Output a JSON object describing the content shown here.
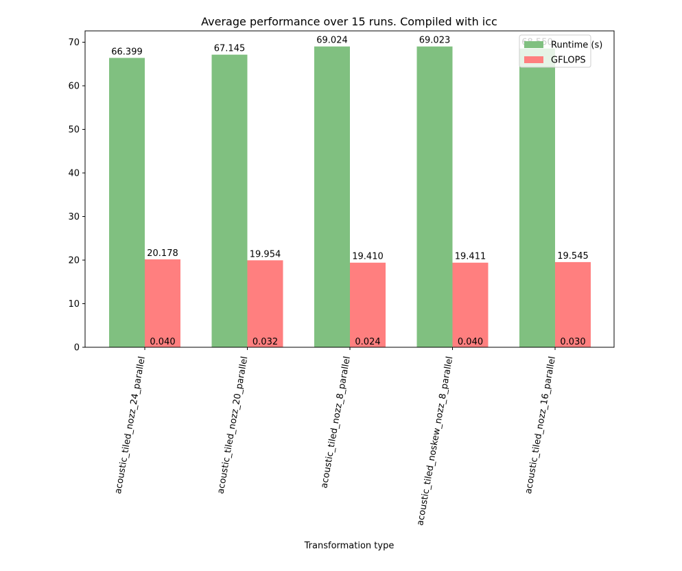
{
  "chart_data": {
    "type": "bar",
    "title": "Average performance over 15 runs. Compiled with icc",
    "xlabel": "Transformation type",
    "ylabel": "",
    "ylim": [
      0,
      72.6
    ],
    "yticks": [
      0,
      10,
      20,
      30,
      40,
      50,
      60,
      70
    ],
    "grid": false,
    "legend_position": "top-right",
    "categories": [
      "acoustic_tiled_nozz_24_parallel",
      "acoustic_tiled_nozz_20_parallel",
      "acoustic_tiled_nozz_8_parallel",
      "acoustic_tiled_noskew_nozz_8_parallel",
      "acoustic_tiled_nozz_16_parallel"
    ],
    "series": [
      {
        "name": "Runtime (s)",
        "color": "#80c080",
        "values": [
          66.399,
          67.145,
          69.024,
          69.023,
          68.55
        ],
        "labels": [
          "66.399",
          "67.145",
          "69.024",
          "69.023",
          "68.550"
        ]
      },
      {
        "name": "GFLOPS",
        "color": "#ff7f7f",
        "values": [
          20.178,
          19.954,
          19.41,
          19.411,
          19.545
        ],
        "labels": [
          "20.178",
          "19.954",
          "19.410",
          "19.411",
          "19.545"
        ]
      }
    ],
    "annotations": [
      "0.040",
      "0.032",
      "0.024",
      "0.040",
      "0.030"
    ]
  }
}
